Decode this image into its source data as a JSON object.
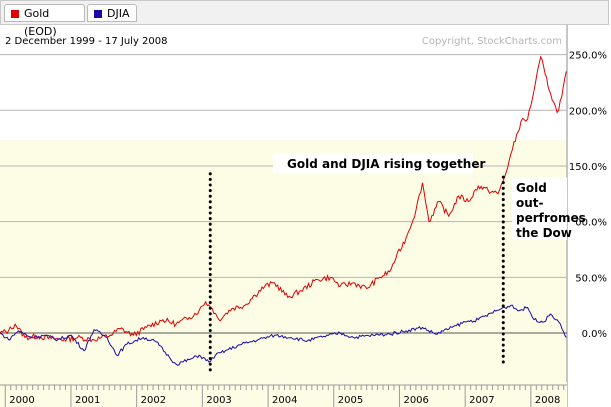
{
  "legend": [
    {
      "label": "Gold (EOD)",
      "color": "#e00000"
    },
    {
      "label": "DJIA",
      "color": "#1a0aa8"
    }
  ],
  "date_range": "2 December 1999 - 17 July 2008",
  "copyright": "Copyright, StockCharts.com",
  "chart_data": {
    "type": "line",
    "title": "",
    "subtitle": "2 December 1999 - 17 July 2008",
    "y_axis": {
      "ticks": [
        "250.0%",
        "200.0%",
        "150.0%",
        "00.0%",
        "50.0%",
        "0.0%"
      ],
      "tick_values": [
        250,
        200,
        150,
        100,
        50,
        0
      ],
      "range": [
        -35,
        260
      ],
      "unit": "% change"
    },
    "x_axis": {
      "ticks": [
        "2000",
        "2001",
        "2002",
        "2003",
        "2004",
        "2005",
        "2006",
        "2007",
        "2008"
      ],
      "tick_years": [
        2000,
        2001,
        2002,
        2003,
        2004,
        2005,
        2006,
        2007,
        2008
      ],
      "range": [
        1999.92,
        2008.55
      ]
    },
    "grid": true,
    "legend_position": "top-left",
    "series": [
      {
        "name": "Gold (EOD)",
        "color": "#e00000",
        "points": [
          [
            1999.92,
            0
          ],
          [
            2000.05,
            2
          ],
          [
            2000.15,
            8
          ],
          [
            2000.3,
            -4
          ],
          [
            2000.5,
            -3
          ],
          [
            2000.7,
            -5
          ],
          [
            2000.9,
            -6
          ],
          [
            2001.1,
            -4
          ],
          [
            2001.35,
            -6
          ],
          [
            2001.6,
            -2
          ],
          [
            2001.75,
            4
          ],
          [
            2001.95,
            -2
          ],
          [
            2002.15,
            5
          ],
          [
            2002.4,
            12
          ],
          [
            2002.6,
            8
          ],
          [
            2002.8,
            14
          ],
          [
            2002.95,
            20
          ],
          [
            2003.05,
            28
          ],
          [
            2003.15,
            22
          ],
          [
            2003.25,
            12
          ],
          [
            2003.45,
            22
          ],
          [
            2003.65,
            25
          ],
          [
            2003.8,
            34
          ],
          [
            2003.95,
            42
          ],
          [
            2004.1,
            45
          ],
          [
            2004.3,
            32
          ],
          [
            2004.5,
            38
          ],
          [
            2004.75,
            48
          ],
          [
            2004.95,
            50
          ],
          [
            2005.1,
            42
          ],
          [
            2005.3,
            45
          ],
          [
            2005.5,
            40
          ],
          [
            2005.7,
            50
          ],
          [
            2005.85,
            55
          ],
          [
            2005.95,
            68
          ],
          [
            2006.1,
            85
          ],
          [
            2006.25,
            110
          ],
          [
            2006.35,
            135
          ],
          [
            2006.45,
            100
          ],
          [
            2006.6,
            118
          ],
          [
            2006.75,
            105
          ],
          [
            2006.9,
            123
          ],
          [
            2007.05,
            118
          ],
          [
            2007.2,
            132
          ],
          [
            2007.35,
            128
          ],
          [
            2007.5,
            125
          ],
          [
            2007.6,
            140
          ],
          [
            2007.72,
            165
          ],
          [
            2007.85,
            190
          ],
          [
            2007.95,
            192
          ],
          [
            2008.05,
            218
          ],
          [
            2008.15,
            248
          ],
          [
            2008.22,
            232
          ],
          [
            2008.3,
            215
          ],
          [
            2008.4,
            198
          ],
          [
            2008.47,
            212
          ],
          [
            2008.54,
            235
          ]
        ]
      },
      {
        "name": "DJIA",
        "color": "#1a0aa8",
        "points": [
          [
            1999.92,
            0
          ],
          [
            2000.05,
            -6
          ],
          [
            2000.2,
            2
          ],
          [
            2000.4,
            -4
          ],
          [
            2000.6,
            -2
          ],
          [
            2000.8,
            -6
          ],
          [
            2001.0,
            -2
          ],
          [
            2001.2,
            -16
          ],
          [
            2001.35,
            3
          ],
          [
            2001.55,
            -4
          ],
          [
            2001.7,
            -20
          ],
          [
            2001.85,
            -10
          ],
          [
            2002.1,
            -4
          ],
          [
            2002.3,
            -8
          ],
          [
            2002.5,
            -22
          ],
          [
            2002.6,
            -28
          ],
          [
            2002.8,
            -24
          ],
          [
            2002.95,
            -20
          ],
          [
            2003.1,
            -26
          ],
          [
            2003.2,
            -20
          ],
          [
            2003.35,
            -16
          ],
          [
            2003.6,
            -10
          ],
          [
            2003.85,
            -6
          ],
          [
            2004.1,
            -2
          ],
          [
            2004.35,
            -4
          ],
          [
            2004.6,
            -7
          ],
          [
            2004.85,
            -3
          ],
          [
            2005.1,
            0
          ],
          [
            2005.3,
            -4
          ],
          [
            2005.6,
            -2
          ],
          [
            2005.85,
            -1
          ],
          [
            2006.1,
            2
          ],
          [
            2006.35,
            5
          ],
          [
            2006.55,
            -1
          ],
          [
            2006.8,
            5
          ],
          [
            2007.0,
            10
          ],
          [
            2007.2,
            12
          ],
          [
            2007.4,
            18
          ],
          [
            2007.6,
            23
          ],
          [
            2007.72,
            25
          ],
          [
            2007.8,
            20
          ],
          [
            2007.95,
            23
          ],
          [
            2008.05,
            12
          ],
          [
            2008.2,
            10
          ],
          [
            2008.3,
            17
          ],
          [
            2008.4,
            12
          ],
          [
            2008.5,
            1
          ],
          [
            2008.54,
            -4
          ]
        ]
      }
    ],
    "annotations": [
      {
        "text": "Gold and DJIA rising together"
      },
      {
        "text": "Gold out- perfromes the Dow",
        "lines": [
          "Gold",
          "out-",
          "perfromes",
          "the Dow"
        ]
      }
    ],
    "markers": [
      {
        "x": 2003.12,
        "y_top": 143,
        "y_bottom": -35
      },
      {
        "x": 2007.58,
        "y_top": 140,
        "y_bottom": -28
      }
    ]
  }
}
